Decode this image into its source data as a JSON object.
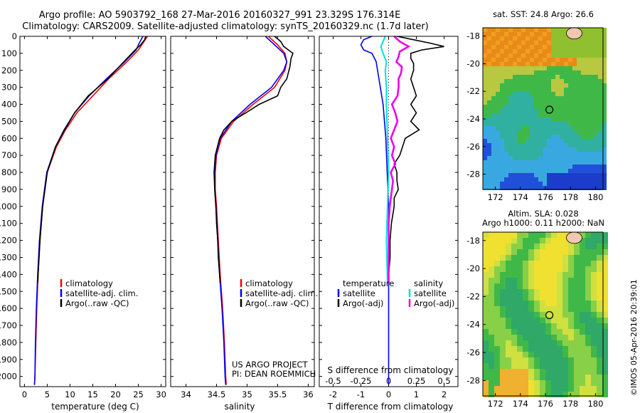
{
  "titles": {
    "line1": "Argo profile: AO 5903792_168 27-Mar-2016 20160327_991 23.329S 176.314E",
    "line2": "Climatology: CARS2009. Satellite-adjusted climatology: synTS_20160329.nc (1.7d later)"
  },
  "colors": {
    "climatology": "#ee0000",
    "satellite": "#0000ee",
    "argo": "#000000",
    "salinity_satellite": "#00e0e0",
    "salinity_argo": "#ee00ee"
  },
  "chart_data": [
    {
      "type": "line",
      "name": "temperature",
      "xlabel": "temperature (deg C)",
      "ylabel": "",
      "xlim": [
        -1,
        31
      ],
      "ylim": [
        2060,
        0
      ],
      "xticks": [
        "0",
        "5",
        "10",
        "15",
        "20",
        "25",
        "30"
      ],
      "yticks": [
        "0",
        "100",
        "200",
        "300",
        "400",
        "500",
        "600",
        "700",
        "800",
        "900",
        "1000",
        "1100",
        "1200",
        "1300",
        "1400",
        "1500",
        "1600",
        "1700",
        "1800",
        "1900",
        "2000"
      ],
      "legend": [
        "climatology",
        "satellite-adj. clim.",
        "Argo(..raw -QC)"
      ],
      "series": [
        {
          "name": "climatology",
          "depth": [
            0,
            40,
            80,
            150,
            250,
            350,
            450,
            550,
            650,
            800,
            1000,
            1200,
            1400,
            1600,
            1800,
            2000,
            2050
          ],
          "values": [
            27.0,
            26.0,
            25.0,
            22.5,
            18.5,
            15.0,
            11.5,
            9.0,
            7.0,
            5.0,
            4.0,
            3.4,
            3.0,
            2.7,
            2.5,
            2.3,
            2.2
          ]
        },
        {
          "name": "satellite-adj. clim.",
          "depth": [
            0,
            40,
            80,
            150,
            250,
            350,
            450,
            550,
            650,
            800,
            1000,
            1200,
            1400,
            1600,
            1800,
            2000,
            2050
          ],
          "values": [
            26.0,
            25.2,
            24.5,
            22.0,
            18.0,
            14.2,
            11.0,
            8.7,
            6.8,
            4.9,
            3.9,
            3.3,
            2.9,
            2.6,
            2.4,
            2.3,
            2.2
          ]
        },
        {
          "name": "Argo(..raw -QC)",
          "depth": [
            0,
            20,
            50,
            80,
            150,
            250,
            350,
            400,
            450,
            550,
            650,
            800,
            1000,
            1200,
            1400,
            1450
          ],
          "values": [
            26.6,
            26.4,
            25.5,
            24.3,
            21.8,
            18.3,
            14.0,
            12.5,
            11.0,
            8.8,
            6.8,
            5.0,
            4.0,
            3.4,
            3.0,
            2.9
          ]
        }
      ]
    },
    {
      "type": "line",
      "name": "salinity",
      "xlabel": "salinity",
      "xlim": [
        33.75,
        36.1
      ],
      "ylim": [
        2060,
        0
      ],
      "xticks": [
        "34",
        "34.5",
        "35",
        "35.5",
        "36"
      ],
      "legend": [
        "climatology",
        "satellite-adj. clim.",
        "Argo(..raw -QC)"
      ],
      "annotations": [
        "US ARGO PROJECT",
        "PI: DEAN ROEMMICH"
      ],
      "series": [
        {
          "name": "climatology",
          "depth": [
            0,
            50,
            100,
            150,
            200,
            300,
            400,
            500,
            600,
            700,
            800,
            900,
            1000,
            1200,
            1400,
            1600,
            1800,
            2000,
            2050
          ],
          "values": [
            35.35,
            35.5,
            35.62,
            35.65,
            35.62,
            35.45,
            35.1,
            34.78,
            34.58,
            34.5,
            34.48,
            34.48,
            34.5,
            34.53,
            34.56,
            34.6,
            34.63,
            34.65,
            34.66
          ]
        },
        {
          "name": "satellite-adj. clim.",
          "depth": [
            0,
            50,
            100,
            150,
            200,
            300,
            400,
            500,
            600,
            700,
            800,
            900,
            1000,
            1200,
            1400,
            1600,
            1800,
            2000,
            2050
          ],
          "values": [
            35.3,
            35.45,
            35.6,
            35.65,
            35.6,
            35.4,
            35.05,
            34.75,
            34.56,
            34.49,
            34.47,
            34.47,
            34.49,
            34.52,
            34.55,
            34.59,
            34.62,
            34.64,
            34.65
          ]
        },
        {
          "name": "Argo(..raw -QC)",
          "depth": [
            0,
            30,
            60,
            100,
            130,
            180,
            250,
            300,
            350,
            400,
            450,
            500,
            550,
            600,
            700,
            800,
            900,
            1000,
            1100,
            1200,
            1300,
            1400,
            1450
          ],
          "values": [
            35.45,
            35.55,
            35.6,
            35.75,
            35.72,
            35.7,
            35.65,
            35.55,
            35.5,
            35.2,
            34.98,
            34.75,
            34.62,
            34.55,
            34.48,
            34.46,
            34.47,
            34.49,
            34.5,
            34.52,
            34.53,
            34.55,
            34.56
          ]
        }
      ]
    },
    {
      "type": "line",
      "name": "difference",
      "xlabel": "T difference from climatology",
      "top_label": "S difference from climatology",
      "xlim": [
        -2.5,
        2.5
      ],
      "ylim": [
        2060,
        0
      ],
      "xticks": [
        "-2",
        "-1",
        "0",
        "1",
        "2"
      ],
      "top_xticks": [
        "-0.5",
        "-0.25",
        "0",
        "0.25",
        "0.5"
      ],
      "legend_left_header": "temperature",
      "legend_right_header": "salinity",
      "legend_left": [
        "satellite",
        "Argo(-adj)"
      ],
      "legend_right": [
        "satellite",
        "Argo(-adj)"
      ],
      "series": [
        {
          "name": "temperature satellite",
          "depth": [
            0,
            20,
            50,
            80,
            100,
            150,
            250,
            400,
            600,
            800,
            1000,
            1200,
            1500,
            2050
          ],
          "values": [
            -0.6,
            -0.9,
            -1.0,
            -0.9,
            -0.6,
            -0.45,
            -0.35,
            -0.2,
            -0.1,
            -0.05,
            0.0,
            0.0,
            0.0,
            0.0
          ]
        },
        {
          "name": "temperature Argo(-adj)",
          "depth": [
            0,
            20,
            40,
            60,
            80,
            100,
            130,
            160,
            200,
            250,
            300,
            350,
            400,
            450,
            500,
            550,
            600,
            650,
            700,
            750,
            800,
            850,
            900,
            950,
            1000,
            1100,
            1200,
            1300,
            1400,
            1450
          ],
          "values": [
            0.3,
            0.9,
            1.5,
            2.0,
            1.2,
            0.8,
            0.8,
            0.9,
            0.9,
            0.8,
            0.9,
            1.0,
            0.8,
            1.0,
            0.8,
            1.1,
            0.6,
            0.5,
            0.4,
            0.2,
            0.3,
            0.3,
            0.35,
            0.2,
            0.2,
            0.1,
            0.05,
            0.05,
            0.0,
            0.0
          ]
        },
        {
          "name": "salinity satellite",
          "depth": [
            0,
            30,
            60,
            100,
            150,
            200,
            300,
            400,
            600,
            800,
            1000,
            1200,
            1450
          ],
          "values": [
            -0.03,
            -0.05,
            -0.07,
            -0.05,
            -0.02,
            -0.03,
            -0.02,
            -0.02,
            -0.01,
            0.0,
            -0.01,
            -0.02,
            -0.01
          ]
        },
        {
          "name": "salinity Argo(-adj)",
          "depth": [
            0,
            30,
            60,
            90,
            120,
            150,
            180,
            220,
            250,
            300,
            350,
            400,
            450,
            500,
            550,
            600,
            650,
            700,
            750,
            800,
            850,
            900,
            950,
            1000,
            1100,
            1200,
            1300,
            1400,
            1450
          ],
          "values": [
            0.05,
            0.1,
            0.18,
            0.1,
            0.09,
            0.07,
            0.12,
            0.11,
            0.09,
            0.09,
            0.08,
            0.03,
            0.06,
            0.08,
            0.05,
            0.02,
            0.05,
            0.03,
            0.06,
            0.02,
            0.04,
            0.03,
            0.02,
            0.01,
            0.0,
            0.0,
            0.0,
            0.0,
            0.0
          ]
        }
      ]
    },
    {
      "type": "heatmap",
      "name": "sst_map",
      "title": "sat. SST: 24.8  Argo: 26.6",
      "xticks": [
        "172",
        "174",
        "176",
        "178",
        "180"
      ],
      "yticks": [
        "-18",
        "-20",
        "-22",
        "-24",
        "-26",
        "-28"
      ],
      "xlim": [
        171,
        180.6
      ],
      "ylim": [
        -29.1,
        -17.4
      ],
      "marker": {
        "lon": 176.314,
        "lat": -23.329
      }
    },
    {
      "type": "heatmap",
      "name": "sla_map",
      "title_line1": "Altim. SLA: 0.028",
      "title_line2": "Argo h1000: 0.11  h2000: NaN",
      "xticks": [
        "172",
        "174",
        "176",
        "178",
        "180"
      ],
      "yticks": [
        "-18",
        "-20",
        "-22",
        "-24",
        "-26",
        "-28"
      ],
      "xlim": [
        171,
        180.6
      ],
      "ylim": [
        -29.1,
        -17.4
      ],
      "marker": {
        "lon": 176.314,
        "lat": -23.329
      }
    }
  ],
  "footer": {
    "stamp": "©IMOS 05-Apr-2016 20:39:01"
  }
}
